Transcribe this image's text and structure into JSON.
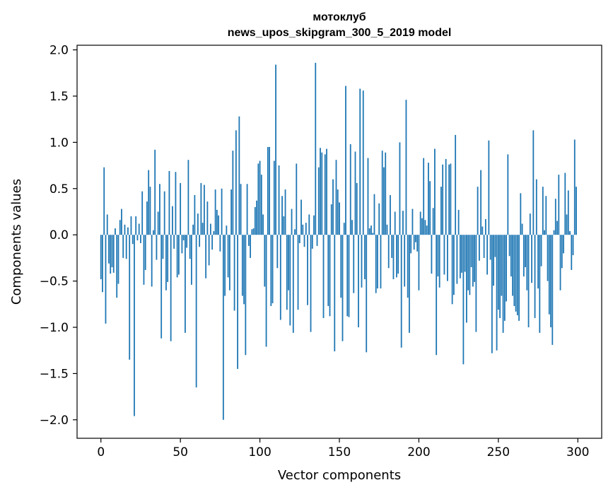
{
  "chart_data": {
    "type": "bar",
    "title": "мотоклуб",
    "subtitle": "news_upos_skipgram_300_5_2019 model",
    "xlabel": "Vector components",
    "ylabel": "Components values",
    "xlim": [
      -15,
      315
    ],
    "ylim": [
      -2.2,
      2.05
    ],
    "x_ticks": [
      0,
      50,
      100,
      150,
      200,
      250,
      300
    ],
    "x_tick_labels": [
      "0",
      "50",
      "100",
      "150",
      "200",
      "250",
      "300"
    ],
    "y_ticks": [
      2.0,
      1.5,
      1.0,
      0.5,
      0.0,
      -0.5,
      -1.0,
      -1.5,
      -2.0
    ],
    "y_tick_labels": [
      "2.0",
      "1.5",
      "1.0",
      "0.5",
      "0.0",
      "−0.5",
      "−1.0",
      "−1.5",
      "−2.0"
    ],
    "bar_color": "#1f77b4",
    "grid": false,
    "legend": "none",
    "values": [
      -0.48,
      -0.62,
      0.73,
      -0.96,
      0.22,
      -0.31,
      -0.42,
      -0.35,
      -0.41,
      0.07,
      -0.68,
      -0.53,
      0.16,
      0.28,
      -0.25,
      0.11,
      -0.26,
      0.08,
      -1.35,
      0.2,
      -0.1,
      -1.96,
      0.2,
      -0.06,
      0.12,
      -0.09,
      0.47,
      -0.54,
      -0.38,
      0.36,
      0.7,
      0.52,
      -0.56,
      0.05,
      0.92,
      -0.27,
      0.25,
      0.55,
      -1.12,
      -0.26,
      0.47,
      -0.6,
      -0.51,
      0.69,
      -1.15,
      0.31,
      -0.15,
      0.68,
      -0.46,
      -0.43,
      0.56,
      -0.2,
      -0.06,
      -1.06,
      -0.14,
      0.81,
      -0.26,
      -0.54,
      0.11,
      0.43,
      -1.65,
      0.23,
      -0.13,
      0.56,
      0.13,
      0.54,
      -0.47,
      0.36,
      -0.33,
      0.12,
      -0.16,
      0.04,
      0.49,
      0.27,
      0.21,
      -0.18,
      0.5,
      -2.0,
      -0.66,
      0.1,
      -0.46,
      -0.6,
      0.49,
      0.91,
      -0.82,
      1.13,
      -1.45,
      1.28,
      0.55,
      -0.66,
      -0.75,
      -1.3,
      0.55,
      -0.12,
      -0.25,
      0.06,
      0.07,
      0.3,
      0.37,
      0.77,
      0.8,
      0.65,
      0.22,
      -0.56,
      -1.21,
      0.95,
      0.95,
      -0.77,
      -0.74,
      0.8,
      1.84,
      -0.36,
      0.75,
      -0.92,
      0.42,
      0.2,
      0.49,
      -0.81,
      -0.6,
      -0.98,
      0.28,
      -1.06,
      0.06,
      0.77,
      -0.81,
      -0.09,
      0.38,
      0.11,
      -0.13,
      0.13,
      -0.76,
      0.22,
      -1.05,
      -0.15,
      0.21,
      1.86,
      -0.12,
      0.73,
      0.94,
      0.89,
      -0.9,
      0.87,
      0.93,
      -0.77,
      -0.88,
      0.33,
      0.6,
      -1.26,
      0.81,
      0.49,
      0.35,
      -0.68,
      -1.15,
      0.13,
      1.61,
      -0.88,
      -0.89,
      0.98,
      0.16,
      -0.63,
      0.9,
      0.56,
      -1.0,
      1.58,
      -0.57,
      1.56,
      -0.48,
      -1.27,
      0.83,
      0.07,
      0.1,
      0.02,
      0.44,
      -0.63,
      -0.58,
      0.34,
      -0.58,
      0.91,
      0.73,
      0.89,
      0.11,
      -0.36,
      0.43,
      -0.25,
      -0.48,
      0.25,
      -0.46,
      -0.42,
      1.0,
      -1.22,
      0.26,
      -0.56,
      1.46,
      -0.68,
      -1.06,
      -0.2,
      0.28,
      -0.16,
      -0.08,
      -0.18,
      -0.6,
      0.25,
      0.18,
      0.83,
      0.16,
      0.1,
      0.78,
      0.58,
      -0.42,
      0.29,
      0.93,
      -1.3,
      -0.45,
      -0.57,
      0.52,
      0.76,
      -0.43,
      0.82,
      -0.5,
      0.76,
      0.77,
      -0.75,
      -0.65,
      1.08,
      -0.53,
      0.27,
      -0.47,
      -0.41,
      -1.4,
      -0.4,
      -0.95,
      -0.6,
      -0.65,
      -0.35,
      -0.56,
      -0.51,
      -1.05,
      0.52,
      -0.28,
      0.7,
      0.09,
      -0.25,
      0.17,
      -0.43,
      1.02,
      -0.27,
      -1.28,
      -0.55,
      -0.24,
      -1.25,
      -0.81,
      -0.9,
      -0.66,
      -1.06,
      -0.93,
      -0.72,
      0.87,
      -0.23,
      -0.45,
      -0.66,
      -0.77,
      -0.83,
      -0.87,
      -0.93,
      0.45,
      0.12,
      -0.45,
      -0.35,
      -0.6,
      -1.0,
      0.23,
      -0.52,
      1.13,
      -0.9,
      0.6,
      -0.58,
      -1.06,
      -0.34,
      0.52,
      0.05,
      0.42,
      -0.5,
      -0.86,
      -1.0,
      -1.19,
      0.05,
      0.39,
      0.15,
      0.65,
      -0.6,
      -0.36,
      -0.2,
      0.67,
      0.22,
      0.48,
      0.04,
      -0.38,
      -0.22,
      1.03,
      0.52
    ]
  }
}
